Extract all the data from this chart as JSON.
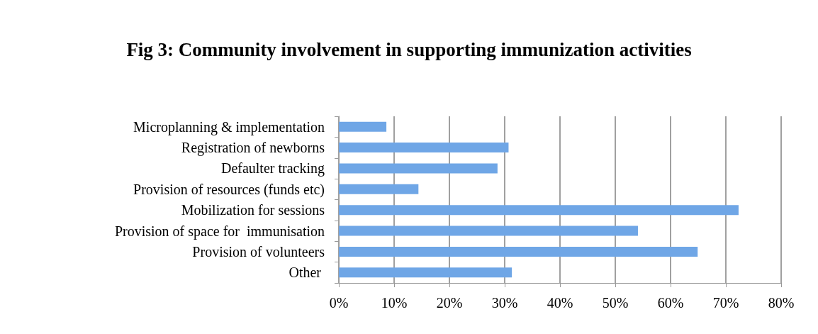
{
  "chart_data": {
    "type": "bar",
    "orientation": "horizontal",
    "title": "Fig 3: Community involvement in supporting immunization activities",
    "categories": [
      "Microplanning & implementation",
      "Registration of newborns",
      "Defaulter tracking",
      "Provision of resources (funds etc)",
      "Mobilization for sessions",
      "Provision of space for  immunisation",
      "Provision of volunteers",
      "Other "
    ],
    "values": [
      8.6,
      30.7,
      28.7,
      14.4,
      72.3,
      54.1,
      64.9,
      31.3
    ],
    "color": "#6fa6e6",
    "xlim": [
      0,
      80
    ],
    "xticks": [
      {
        "value": 0,
        "label": "0%"
      },
      {
        "value": 10,
        "label": "10%"
      },
      {
        "value": 20,
        "label": "20%"
      },
      {
        "value": 30,
        "label": "30%"
      },
      {
        "value": 40,
        "label": "40%"
      },
      {
        "value": 50,
        "label": "50%"
      },
      {
        "value": 60,
        "label": "60%"
      },
      {
        "value": 70,
        "label": "70%"
      },
      {
        "value": 80,
        "label": "80%"
      }
    ],
    "grid": "x"
  }
}
